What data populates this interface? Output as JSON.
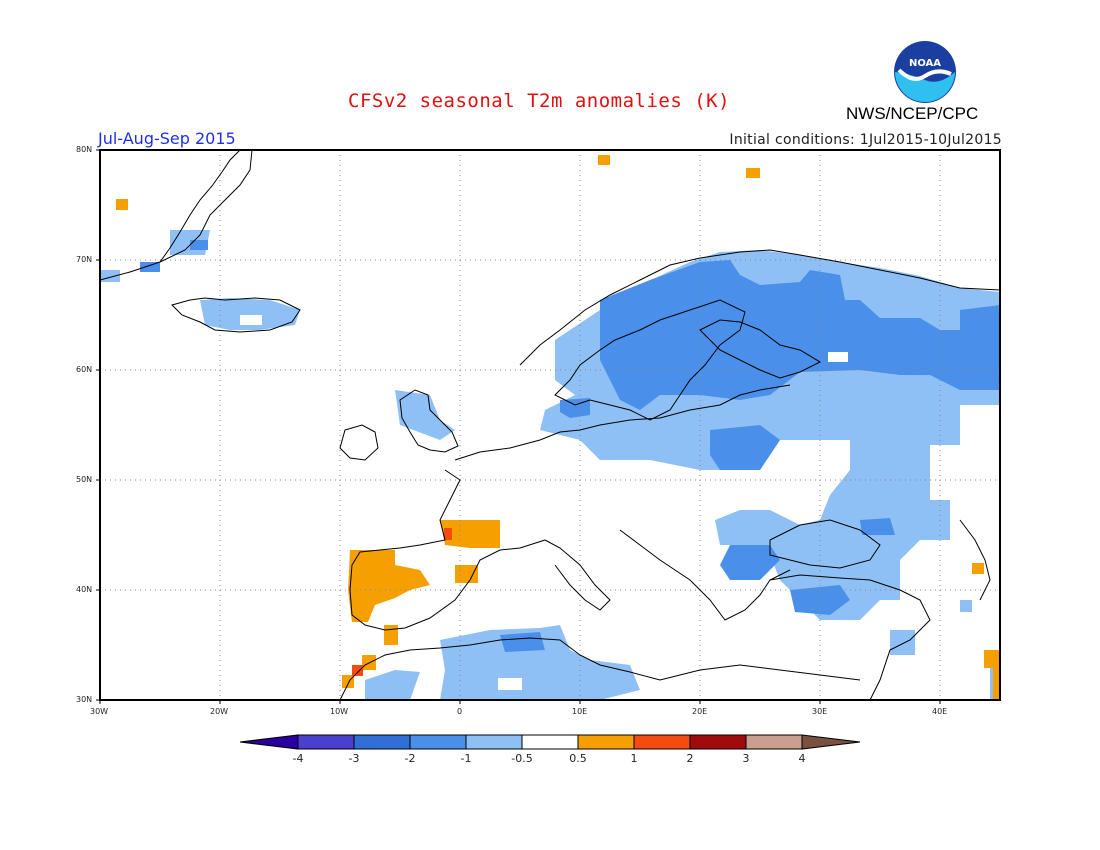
{
  "header": {
    "title": "CFSv2 seasonal T2m anomalies (K)",
    "period": "Jul-Aug-Sep 2015",
    "initial_conditions": "Initial conditions: 1Jul2015-10Jul2015",
    "agency": "NWS/NCEP/CPC",
    "logo_text": "NOAA"
  },
  "map": {
    "lon_range": [
      -30,
      45
    ],
    "lat_range": [
      30,
      80
    ],
    "lat_labels": [
      "80N",
      "70N",
      "60N",
      "50N",
      "40N",
      "30N"
    ],
    "lon_labels": [
      "30W",
      "20W",
      "10W",
      "0",
      "10E",
      "20E",
      "30E",
      "40E"
    ],
    "gridlines": "dotted"
  },
  "colorbar": {
    "labels": [
      "-4",
      "-3",
      "-2",
      "-1",
      "-0.5",
      "0.5",
      "1",
      "2",
      "3",
      "4"
    ],
    "colors": [
      "#2a00a0",
      "#4b3fd0",
      "#2f6fd8",
      "#4a90ea",
      "#78b6f4",
      "#ffffff",
      "#f5a000",
      "#f54b10",
      "#a00c0c",
      "#c9a090",
      "#7a5040"
    ]
  },
  "anomaly_colors": {
    "light_blue": "#8ec0f5",
    "medium_blue": "#4a90ea",
    "orange": "#f5a000",
    "red": "#f54b10"
  }
}
